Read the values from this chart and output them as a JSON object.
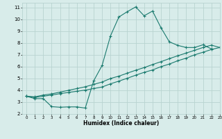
{
  "xlabel": "Humidex (Indice chaleur)",
  "background_color": "#d8ecea",
  "grid_color": "#b8d4d0",
  "line_color": "#1a7a6e",
  "xlim": [
    -0.5,
    23
  ],
  "ylim": [
    2,
    11.4
  ],
  "xticks": [
    0,
    1,
    2,
    3,
    4,
    5,
    6,
    7,
    8,
    9,
    10,
    11,
    12,
    13,
    14,
    15,
    16,
    17,
    18,
    19,
    20,
    21,
    22,
    23
  ],
  "yticks": [
    2,
    3,
    4,
    5,
    6,
    7,
    8,
    9,
    10,
    11
  ],
  "line1_x": [
    0,
    1,
    2,
    3,
    4,
    5,
    6,
    7,
    8,
    9,
    10,
    11,
    12,
    13,
    14,
    15,
    16,
    17,
    18,
    19,
    20,
    21,
    22
  ],
  "line1_y": [
    3.5,
    3.3,
    3.3,
    2.62,
    2.57,
    2.6,
    2.6,
    2.5,
    4.8,
    6.1,
    8.6,
    10.2,
    10.65,
    11.05,
    10.3,
    10.7,
    9.3,
    8.1,
    7.8,
    7.62,
    7.62,
    7.85,
    7.5
  ],
  "line2_x": [
    0,
    1,
    2,
    3,
    4,
    5,
    6,
    7,
    8,
    9,
    10,
    11,
    12,
    13,
    14,
    15,
    16,
    17,
    18,
    19,
    20,
    21,
    22,
    23
  ],
  "line2_y": [
    3.5,
    3.45,
    3.6,
    3.7,
    3.85,
    4.0,
    4.15,
    4.3,
    4.5,
    4.7,
    5.0,
    5.2,
    5.45,
    5.7,
    5.92,
    6.18,
    6.42,
    6.68,
    6.92,
    7.15,
    7.38,
    7.62,
    7.82,
    7.62
  ],
  "line3_x": [
    0,
    1,
    2,
    3,
    4,
    5,
    6,
    7,
    8,
    9,
    10,
    11,
    12,
    13,
    14,
    15,
    16,
    17,
    18,
    19,
    20,
    21,
    22,
    23
  ],
  "line3_y": [
    3.5,
    3.4,
    3.5,
    3.6,
    3.72,
    3.82,
    3.92,
    4.02,
    4.15,
    4.28,
    4.55,
    4.78,
    5.02,
    5.28,
    5.52,
    5.72,
    6.0,
    6.22,
    6.5,
    6.72,
    7.0,
    7.22,
    7.45,
    7.62
  ]
}
